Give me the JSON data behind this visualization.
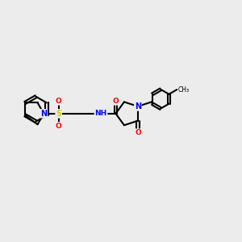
{
  "background_color": "#ececec",
  "bond_color": "#000000",
  "atom_colors": {
    "N": "#0000ff",
    "O": "#ff0000",
    "S": "#cccc00",
    "H": "#000000",
    "C": "#000000"
  },
  "title": "",
  "figsize": [
    3.0,
    3.0
  ],
  "dpi": 100
}
